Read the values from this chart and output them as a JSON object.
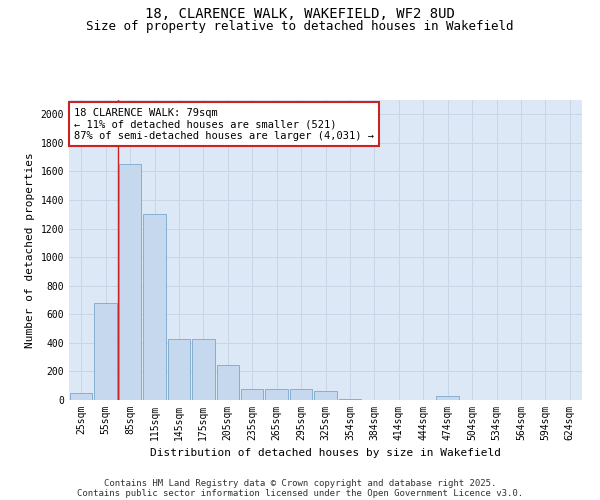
{
  "title_line1": "18, CLARENCE WALK, WAKEFIELD, WF2 8UD",
  "title_line2": "Size of property relative to detached houses in Wakefield",
  "xlabel": "Distribution of detached houses by size in Wakefield",
  "ylabel": "Number of detached properties",
  "categories": [
    "25sqm",
    "55sqm",
    "85sqm",
    "115sqm",
    "145sqm",
    "175sqm",
    "205sqm",
    "235sqm",
    "265sqm",
    "295sqm",
    "325sqm",
    "354sqm",
    "384sqm",
    "414sqm",
    "444sqm",
    "474sqm",
    "504sqm",
    "534sqm",
    "564sqm",
    "594sqm",
    "624sqm"
  ],
  "values": [
    50,
    680,
    1650,
    1300,
    430,
    430,
    245,
    80,
    80,
    80,
    60,
    5,
    0,
    0,
    0,
    30,
    0,
    0,
    0,
    0,
    0
  ],
  "bar_color": "#c5d8ed",
  "bar_edge_color": "#7ba7cc",
  "vline_x": 2.0,
  "vline_color": "#cc2222",
  "annotation_text": "18 CLARENCE WALK: 79sqm\n← 11% of detached houses are smaller (521)\n87% of semi-detached houses are larger (4,031) →",
  "annotation_box_color": "#ffffff",
  "annotation_box_edge": "#cc2222",
  "ylim": [
    0,
    2100
  ],
  "yticks": [
    0,
    200,
    400,
    600,
    800,
    1000,
    1200,
    1400,
    1600,
    1800,
    2000
  ],
  "grid_color": "#c8d4e8",
  "background_color": "#dce8f5",
  "footer_line1": "Contains HM Land Registry data © Crown copyright and database right 2025.",
  "footer_line2": "Contains public sector information licensed under the Open Government Licence v3.0.",
  "title_fontsize": 10,
  "subtitle_fontsize": 9,
  "axis_label_fontsize": 8,
  "tick_fontsize": 7,
  "annotation_fontsize": 7.5,
  "footer_fontsize": 6.5
}
